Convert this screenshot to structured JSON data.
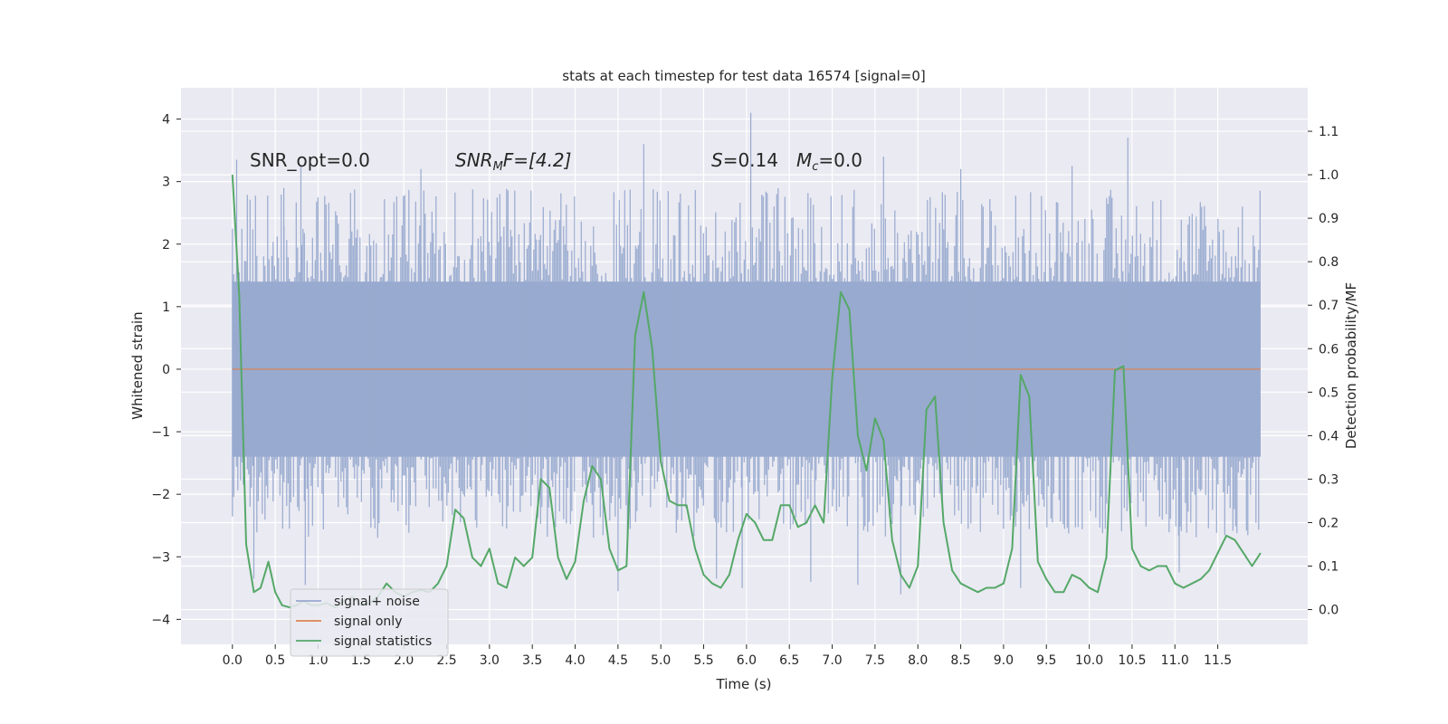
{
  "chart_data": {
    "type": "line",
    "title": "stats at each timestep for test data 16574 [signal=0]",
    "xlabel": "Time (s)",
    "ylabel_left": "Whitened strain",
    "ylabel_right": "Detection probability/MF",
    "xlim": [
      -0.6,
      12.55
    ],
    "ylim_left": [
      -4.4,
      4.5
    ],
    "ylim_right": [
      -0.08,
      1.2
    ],
    "x_ticks": [
      0.0,
      0.5,
      1.0,
      1.5,
      2.0,
      2.5,
      3.0,
      3.5,
      4.0,
      4.5,
      5.0,
      5.5,
      6.0,
      6.5,
      7.0,
      7.5,
      8.0,
      8.5,
      9.0,
      9.5,
      10.0,
      10.5,
      11.0,
      11.5
    ],
    "x_tick_labels": [
      "0.0",
      "0.5",
      "1.0",
      "1.5",
      "2.0",
      "2.5",
      "3.0",
      "3.5",
      "4.0",
      "4.5",
      "5.0",
      "5.5",
      "6.0",
      "6.5",
      "7.0",
      "7.5",
      "8.0",
      "8.5",
      "9.0",
      "9.5",
      "10.0",
      "10.5",
      "11.0",
      "11.5"
    ],
    "y_left_ticks": [
      4,
      3,
      2,
      1,
      0,
      -1,
      -2,
      -3,
      -4
    ],
    "y_left_tick_labels": [
      "4",
      "3",
      "2",
      "1",
      "0",
      "−1",
      "−2",
      "−3",
      "−4"
    ],
    "y_right_ticks": [
      1.1,
      1.0,
      0.9,
      0.8,
      0.7,
      0.6,
      0.5,
      0.4,
      0.3,
      0.2,
      0.1,
      0.0
    ],
    "y_right_tick_labels": [
      "1.1",
      "1.0",
      "0.9",
      "0.8",
      "0.7",
      "0.6",
      "0.5",
      "0.4",
      "0.3",
      "0.2",
      "0.1",
      "0.0"
    ],
    "annotations": {
      "snr_opt": "SNR_opt=0.0",
      "snr_mf_main": "SNR",
      "snr_mf_sub": "M",
      "snr_mf_rest": "F=[4.2]",
      "s_main": "S",
      "s_rest": "=0.14",
      "mc_main": "M",
      "mc_sub": "c",
      "mc_rest": "=0.0"
    },
    "legend": {
      "position": "lower-left",
      "entries": [
        "signal+ noise",
        "signal only",
        "signal statistics"
      ]
    },
    "series": [
      {
        "name": "signal+ noise",
        "color": "#98aacf",
        "kind": "noise",
        "x_range": [
          0.0,
          12.0
        ],
        "core_band": [
          -1.4,
          1.4
        ],
        "peak_x": [
          0.05,
          0.6,
          0.8,
          2.2,
          4.8,
          6.05,
          7.6,
          8.5,
          9.8,
          10.45
        ],
        "peak_y": [
          3.35,
          2.9,
          3.25,
          3.2,
          3.6,
          4.1,
          3.4,
          3.2,
          3.25,
          3.7
        ],
        "trough_x": [
          0.25,
          0.85,
          4.5,
          5.65,
          5.95,
          6.75,
          7.3,
          7.8,
          9.2,
          11.05
        ],
        "trough_y": [
          -3.35,
          -3.45,
          -3.55,
          -3.35,
          -3.5,
          -3.4,
          -3.45,
          -3.6,
          -3.5,
          -3.25
        ]
      },
      {
        "name": "signal only",
        "color": "#dd8452",
        "x": [
          0.0,
          12.0
        ],
        "y": [
          0.0,
          0.0
        ]
      },
      {
        "name": "signal statistics",
        "color": "#55a868",
        "x": [
          0.0,
          0.08,
          0.16,
          0.25,
          0.33,
          0.42,
          0.5,
          0.58,
          0.67,
          0.75,
          0.83,
          0.92,
          1.0,
          1.1,
          1.2,
          1.3,
          1.4,
          1.5,
          1.6,
          1.7,
          1.8,
          1.9,
          2.0,
          2.1,
          2.2,
          2.3,
          2.4,
          2.5,
          2.6,
          2.7,
          2.8,
          2.9,
          3.0,
          3.1,
          3.2,
          3.3,
          3.4,
          3.5,
          3.6,
          3.7,
          3.8,
          3.9,
          4.0,
          4.1,
          4.2,
          4.3,
          4.4,
          4.5,
          4.6,
          4.7,
          4.8,
          4.9,
          5.0,
          5.1,
          5.2,
          5.3,
          5.4,
          5.5,
          5.6,
          5.7,
          5.8,
          5.9,
          6.0,
          6.1,
          6.2,
          6.3,
          6.4,
          6.5,
          6.6,
          6.7,
          6.8,
          6.9,
          7.0,
          7.1,
          7.2,
          7.3,
          7.4,
          7.5,
          7.6,
          7.7,
          7.8,
          7.9,
          8.0,
          8.1,
          8.2,
          8.3,
          8.4,
          8.5,
          8.6,
          8.7,
          8.8,
          8.9,
          9.0,
          9.1,
          9.2,
          9.3,
          9.4,
          9.5,
          9.6,
          9.7,
          9.8,
          9.9,
          10.0,
          10.1,
          10.2,
          10.3,
          10.4,
          10.5,
          10.6,
          10.7,
          10.8,
          10.9,
          11.0,
          11.1,
          11.2,
          11.3,
          11.4,
          11.5,
          11.6,
          11.7,
          11.8,
          11.9,
          12.0
        ],
        "y": [
          1.0,
          0.72,
          0.15,
          0.04,
          0.05,
          0.11,
          0.04,
          0.01,
          0.005,
          0.01,
          0.02,
          0.01,
          0.01,
          0.015,
          0.005,
          0.02,
          0.03,
          0.01,
          0.015,
          0.03,
          0.06,
          0.04,
          0.03,
          0.04,
          0.045,
          0.04,
          0.06,
          0.1,
          0.23,
          0.21,
          0.12,
          0.1,
          0.14,
          0.06,
          0.05,
          0.12,
          0.1,
          0.12,
          0.3,
          0.28,
          0.12,
          0.07,
          0.11,
          0.25,
          0.33,
          0.3,
          0.14,
          0.09,
          0.1,
          0.63,
          0.73,
          0.6,
          0.34,
          0.25,
          0.24,
          0.24,
          0.14,
          0.08,
          0.06,
          0.05,
          0.08,
          0.16,
          0.22,
          0.2,
          0.16,
          0.16,
          0.24,
          0.24,
          0.19,
          0.2,
          0.24,
          0.2,
          0.53,
          0.73,
          0.69,
          0.4,
          0.32,
          0.44,
          0.39,
          0.16,
          0.08,
          0.05,
          0.1,
          0.46,
          0.49,
          0.2,
          0.09,
          0.06,
          0.05,
          0.04,
          0.05,
          0.05,
          0.06,
          0.14,
          0.54,
          0.49,
          0.11,
          0.07,
          0.04,
          0.04,
          0.08,
          0.07,
          0.05,
          0.04,
          0.12,
          0.55,
          0.56,
          0.14,
          0.1,
          0.09,
          0.1,
          0.1,
          0.06,
          0.05,
          0.06,
          0.07,
          0.09,
          0.13,
          0.17,
          0.16,
          0.13,
          0.1,
          0.13
        ]
      }
    ]
  }
}
